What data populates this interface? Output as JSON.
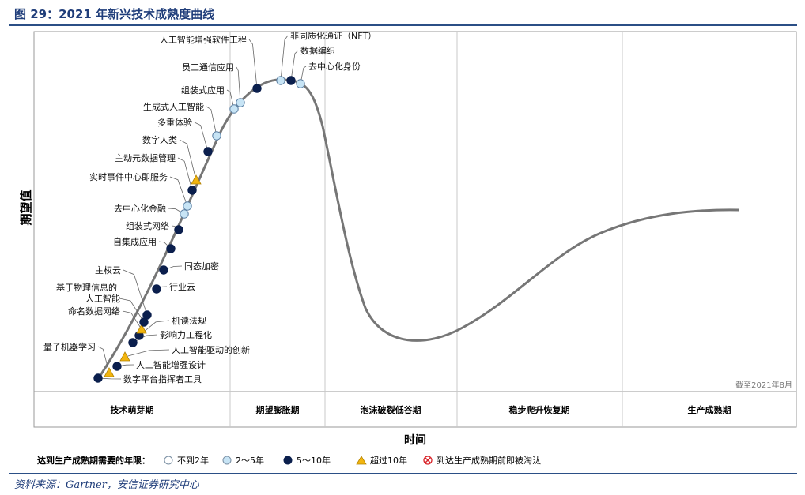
{
  "title": "图 29：2021 年新兴技术成熟度曲线",
  "source": "资料来源：Gartner，安信证券研究中心",
  "chart_data": {
    "type": "scatter",
    "ylabel": "期望值",
    "xlabel": "时间",
    "note": "截至2021年8月",
    "phases": [
      "技术萌芽期",
      "期望膨胀期",
      "泡沫破裂低谷期",
      "稳步爬升恢复期",
      "生产成熟期"
    ],
    "legend_title": "达到生产成熟期需要的年限：",
    "legend": [
      {
        "key": "lt2",
        "label": "不到2年",
        "color": "#ffffff"
      },
      {
        "key": "y2_5",
        "label": "2～5年",
        "color": "#c7e4f5"
      },
      {
        "key": "y5_10",
        "label": "5～10年",
        "color": "#0b1f4d"
      },
      {
        "key": "gt10",
        "label": "超过10年",
        "color": "#f2b50f"
      },
      {
        "key": "obs",
        "label": "到达生产成熟期前即被淘汰",
        "color": "#d9252b"
      }
    ],
    "points": [
      {
        "name": "数字平台指挥者工具",
        "cat": "y5_10"
      },
      {
        "name": "量子机器学习",
        "cat": "gt10"
      },
      {
        "name": "人工智能增强设计",
        "cat": "y5_10"
      },
      {
        "name": "人工智能驱动的创新",
        "cat": "gt10"
      },
      {
        "name": "影响力工程化",
        "cat": "y5_10"
      },
      {
        "name": "机读法规",
        "cat": "y5_10"
      },
      {
        "name": "命名数据网络",
        "cat": "gt10"
      },
      {
        "name": "基于物理信息的人工智能",
        "cat": "y5_10"
      },
      {
        "name": "主权云",
        "cat": "y5_10"
      },
      {
        "name": "行业云",
        "cat": "y5_10"
      },
      {
        "name": "同态加密",
        "cat": "y5_10"
      },
      {
        "name": "自集成应用",
        "cat": "y5_10"
      },
      {
        "name": "组装式网络",
        "cat": "y5_10"
      },
      {
        "name": "去中心化金融",
        "cat": "y2_5"
      },
      {
        "name": "实时事件中心即服务",
        "cat": "y2_5"
      },
      {
        "name": "主动元数据管理",
        "cat": "y5_10"
      },
      {
        "name": "数字人类",
        "cat": "gt10"
      },
      {
        "name": "多重体验",
        "cat": "y5_10"
      },
      {
        "name": "生成式人工智能",
        "cat": "y2_5"
      },
      {
        "name": "组装式应用",
        "cat": "y2_5"
      },
      {
        "name": "员工通信应用",
        "cat": "y2_5"
      },
      {
        "name": "人工智能增强软件工程",
        "cat": "y5_10"
      },
      {
        "name": "非同质化通证（NFT）",
        "cat": "y2_5"
      },
      {
        "name": "数据编织",
        "cat": "y5_10"
      },
      {
        "name": "去中心化身份",
        "cat": "y2_5"
      }
    ]
  }
}
